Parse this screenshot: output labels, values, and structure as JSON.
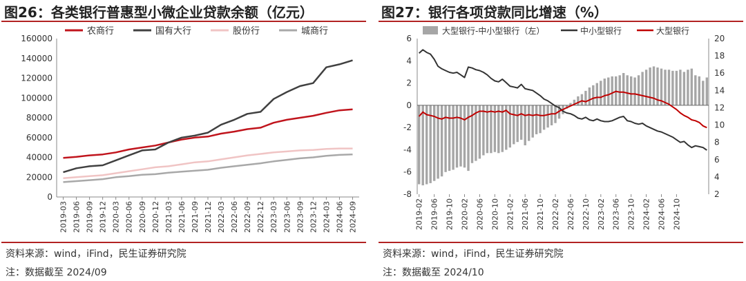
{
  "left": {
    "title": "图26：各类银行普惠型小微企业贷款余额（亿元）",
    "source": "资料来源：wind，iFind，民生证券研究院",
    "cutoff": "注：数据截至 2024/09",
    "chart_data": {
      "type": "line",
      "title": "图26：各类银行普惠型小微企业贷款余额（亿元）",
      "ylabel": "亿元",
      "ylim": [
        0,
        160000
      ],
      "yticks": [
        0,
        20000,
        40000,
        60000,
        80000,
        100000,
        120000,
        140000,
        160000
      ],
      "categories": [
        "2019-03",
        "2019-06",
        "2019-09",
        "2019-12",
        "2020-03",
        "2020-06",
        "2020-09",
        "2020-12",
        "2021-03",
        "2021-06",
        "2021-09",
        "2021-12",
        "2022-03",
        "2022-06",
        "2022-09",
        "2022-12",
        "2023-03",
        "2023-06",
        "2023-09",
        "2023-12",
        "2024-03",
        "2024-06",
        "2024-09"
      ],
      "legend_position": "top",
      "series": [
        {
          "name": "农商行",
          "color": "#c0141c",
          "values": [
            39500,
            40500,
            42000,
            43000,
            45000,
            48000,
            50000,
            52000,
            55000,
            58000,
            60000,
            61000,
            64000,
            66000,
            68500,
            70000,
            75000,
            78000,
            80000,
            82000,
            85000,
            87500,
            88500
          ]
        },
        {
          "name": "国有大行",
          "color": "#404040",
          "values": [
            25000,
            29000,
            31000,
            32000,
            37000,
            42000,
            47000,
            48000,
            55000,
            60000,
            62000,
            65000,
            73000,
            78000,
            84000,
            86000,
            99000,
            106000,
            112000,
            115000,
            131000,
            134000,
            138000
          ]
        },
        {
          "name": "股份行",
          "color": "#f0c4c4",
          "values": [
            19000,
            20000,
            21000,
            22000,
            24000,
            26000,
            28000,
            30000,
            31000,
            33000,
            35000,
            36000,
            38000,
            40000,
            42000,
            43500,
            45000,
            46000,
            47000,
            47500,
            48500,
            49000,
            49000
          ]
        },
        {
          "name": "城商行",
          "color": "#a8a8a8",
          "values": [
            15000,
            16000,
            17000,
            18000,
            20000,
            21000,
            22500,
            23000,
            24500,
            25500,
            26500,
            27500,
            29500,
            31000,
            32500,
            34000,
            36000,
            37500,
            39000,
            40000,
            41500,
            42500,
            43000
          ]
        }
      ]
    }
  },
  "right": {
    "title": "图27：银行各项贷款同比增速（%）",
    "source": "资料来源：wind，iFind，民生证券研究院",
    "cutoff": "注：数据截至 2024/10",
    "chart_data": {
      "type": "bar+line",
      "title": "图27：银行各项贷款同比增速（%）",
      "ylim_left": [
        -8,
        6
      ],
      "yticks_left": [
        -8,
        -6,
        -4,
        -2,
        0,
        2,
        4,
        6
      ],
      "ylim_right": [
        2,
        20
      ],
      "yticks_right": [
        2,
        4,
        6,
        8,
        10,
        12,
        14,
        16,
        18,
        20
      ],
      "xtick_labels": [
        "2019-02",
        "2019-06",
        "2019-10",
        "2020-02",
        "2020-06",
        "2020-10",
        "2021-02",
        "2021-06",
        "2021-10",
        "2022-02",
        "2022-06",
        "2022-10",
        "2023-02",
        "2023-06",
        "2023-10",
        "2024-02",
        "2024-06",
        "2024-10"
      ],
      "legend_position": "top",
      "bars": {
        "name": "大型银行-中小型银行（左）",
        "axis": "left",
        "color": "#a6a6a6",
        "start": "2019-02",
        "values": [
          -7.1,
          -7.2,
          -7.1,
          -7.0,
          -6.8,
          -6.6,
          -6.4,
          -6.0,
          -5.9,
          -5.8,
          -5.6,
          -5.5,
          -5.6,
          -5.9,
          -5.2,
          -5.0,
          -4.8,
          -4.5,
          -4.3,
          -4.3,
          -4.2,
          -4.3,
          -4.2,
          -4.0,
          -3.8,
          -3.5,
          -3.3,
          -3.1,
          -3.6,
          -3.2,
          -2.9,
          -2.6,
          -2.5,
          -2.2,
          -2.0,
          -1.8,
          -1.6,
          -1.2,
          -0.8,
          -0.3,
          0.2,
          0.5,
          0.8,
          1.0,
          1.3,
          1.6,
          1.8,
          2.0,
          2.2,
          2.4,
          2.5,
          2.6,
          2.6,
          2.7,
          2.9,
          2.7,
          2.6,
          2.5,
          2.7,
          3.0,
          3.2,
          3.4,
          3.5,
          3.4,
          3.3,
          3.2,
          3.2,
          3.1,
          3.1,
          3.2,
          3.0,
          3.2,
          3.3,
          2.7,
          2.6,
          2.2,
          2.5
        ]
      },
      "lines": [
        {
          "name": "中小型银行",
          "axis": "right",
          "color": "#333333",
          "start": "2019-02",
          "values": [
            18.3,
            18.7,
            18.4,
            18.2,
            17.6,
            16.8,
            16.5,
            16.3,
            16.1,
            16.0,
            16.1,
            15.8,
            15.5,
            16.7,
            16.6,
            16.4,
            16.3,
            16.1,
            15.8,
            15.4,
            15.1,
            15.0,
            15.3,
            14.9,
            14.5,
            14.4,
            14.3,
            14.7,
            14.2,
            14.1,
            14.0,
            13.7,
            13.4,
            13.0,
            12.8,
            12.5,
            12.2,
            12.0,
            11.6,
            11.4,
            11.3,
            11.1,
            10.8,
            10.7,
            10.9,
            10.6,
            10.5,
            10.7,
            10.5,
            10.4,
            10.4,
            10.5,
            10.7,
            10.9,
            11.0,
            10.5,
            10.4,
            10.2,
            10.1,
            10.2,
            9.9,
            9.7,
            9.5,
            9.3,
            9.2,
            9.0,
            8.8,
            8.6,
            8.3,
            8.0,
            8.1,
            7.7,
            7.4,
            7.6,
            7.5,
            7.4,
            7.1
          ]
        },
        {
          "name": "大型银行",
          "axis": "right",
          "color": "#c00000",
          "start": "2019-02",
          "values": [
            11.0,
            11.5,
            11.2,
            11.1,
            11.0,
            10.8,
            10.7,
            10.9,
            10.8,
            10.8,
            10.9,
            10.8,
            10.6,
            10.9,
            11.1,
            11.4,
            11.6,
            11.6,
            11.5,
            11.6,
            11.5,
            11.6,
            11.5,
            11.7,
            11.3,
            11.2,
            11.1,
            11.3,
            11.1,
            11.2,
            11.1,
            11.2,
            11.1,
            11.1,
            11.2,
            11.3,
            11.3,
            11.6,
            11.8,
            12.0,
            12.2,
            12.4,
            12.6,
            12.8,
            12.7,
            12.9,
            13.1,
            13.2,
            13.2,
            13.4,
            13.5,
            13.7,
            13.9,
            13.8,
            13.8,
            13.7,
            13.6,
            13.6,
            13.5,
            13.4,
            13.3,
            13.2,
            13.1,
            12.9,
            12.8,
            12.6,
            12.4,
            12.1,
            11.8,
            11.4,
            11.1,
            10.9,
            10.6,
            10.5,
            10.3,
            9.9,
            9.7
          ]
        }
      ]
    }
  }
}
